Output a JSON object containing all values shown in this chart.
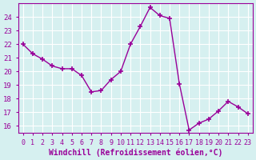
{
  "x": [
    0,
    1,
    2,
    3,
    4,
    5,
    6,
    7,
    8,
    9,
    10,
    11,
    12,
    13,
    14,
    15,
    16,
    17,
    18,
    19,
    20,
    21,
    22,
    23
  ],
  "y": [
    22.0,
    21.3,
    20.9,
    20.4,
    20.2,
    20.2,
    19.7,
    18.5,
    18.6,
    19.4,
    20.0,
    22.0,
    23.3,
    24.7,
    24.1,
    23.9,
    19.1,
    15.7,
    16.2,
    16.5,
    17.1,
    17.8,
    17.4,
    16.9
  ],
  "line_color": "#990099",
  "marker": "+",
  "marker_size": 5,
  "bg_color": "#d6f0f0",
  "grid_color": "#ffffff",
  "xlabel": "Windchill (Refroidissement éolien,°C)",
  "xlabel_color": "#990099",
  "tick_color": "#990099",
  "ylim": [
    15.5,
    25.0
  ],
  "xlim": [
    -0.5,
    23.5
  ],
  "yticks": [
    16,
    17,
    18,
    19,
    20,
    21,
    22,
    23,
    24
  ],
  "xticks": [
    0,
    1,
    2,
    3,
    4,
    5,
    6,
    7,
    8,
    9,
    10,
    11,
    12,
    13,
    14,
    15,
    16,
    17,
    18,
    19,
    20,
    21,
    22,
    23
  ]
}
